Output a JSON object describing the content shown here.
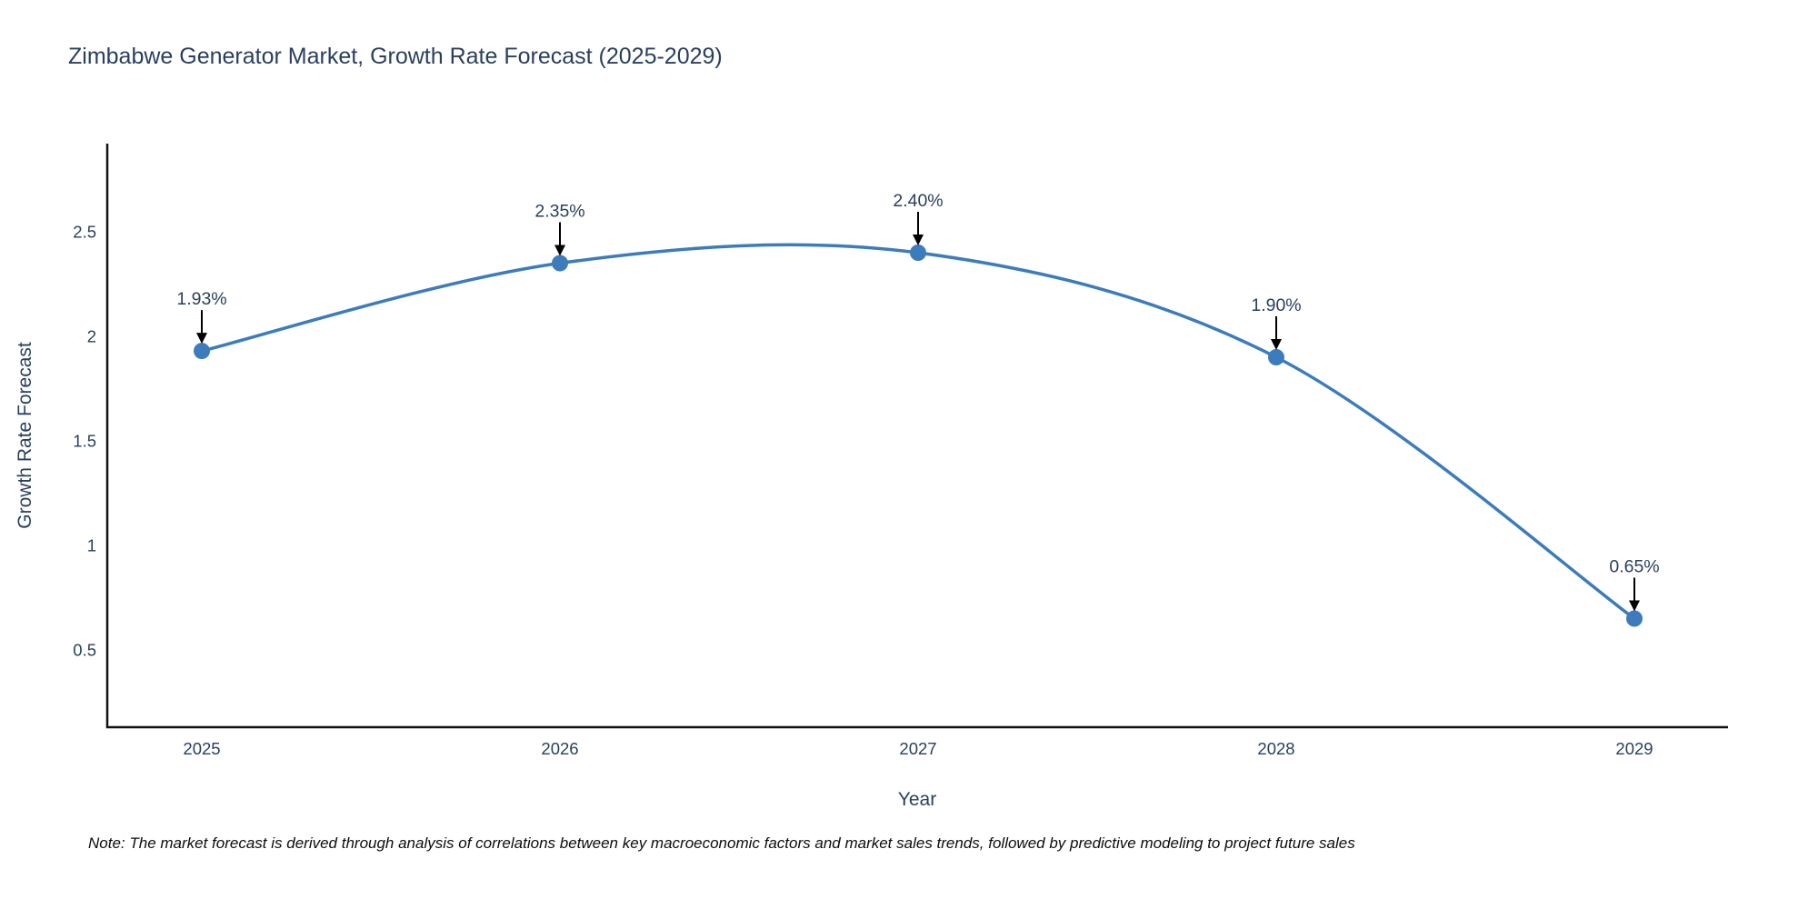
{
  "title": "Zimbabwe Generator Market, Growth Rate Forecast (2025-2029)",
  "note": "Note: The market forecast is derived through analysis of correlations between key macroeconomic factors and market sales trends, followed by predictive modeling to project future sales",
  "chart_data": {
    "type": "line",
    "title": "Zimbabwe Generator Market, Growth Rate Forecast (2025-2029)",
    "xlabel": "Year",
    "ylabel": "Growth Rate Forecast",
    "x": [
      2025,
      2026,
      2027,
      2028,
      2029
    ],
    "values": [
      1.93,
      2.35,
      2.4,
      1.9,
      0.65
    ],
    "point_labels": [
      "1.93%",
      "2.35%",
      "2.40%",
      "1.90%",
      "0.65%"
    ],
    "xticklabels": [
      "2025",
      "2026",
      "2027",
      "2028",
      "2029"
    ],
    "yticks": [
      0.5,
      1,
      1.5,
      2,
      2.5
    ],
    "yticklabels": [
      "0.5",
      "1",
      "1.5",
      "2",
      "2.5"
    ],
    "ylim": [
      0.13,
      2.92
    ],
    "line_shape": "spline",
    "grid": false,
    "legend": "none",
    "colors": {
      "line": "#3c7cbc",
      "marker": "#3c7cbc",
      "annotation_arrow": "#000000",
      "annotation_text": "#2a3f5f",
      "tick_text": "#2a3f5f",
      "axis_line": "#111111"
    }
  }
}
